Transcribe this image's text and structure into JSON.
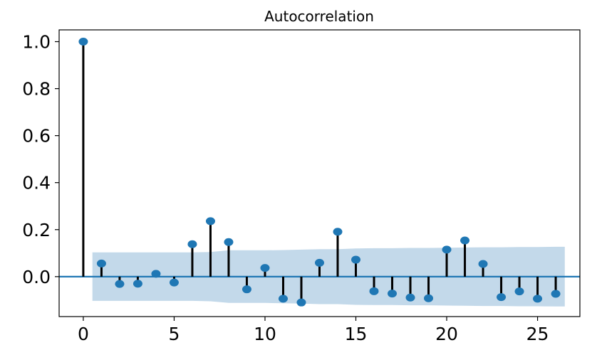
{
  "chart_data": {
    "type": "stem",
    "title": "Autocorrelation",
    "xlabel": "",
    "ylabel": "",
    "xlim": [
      -1.33,
      27.33
    ],
    "ylim": [
      -0.17,
      1.05
    ],
    "x_ticks": [
      0,
      5,
      10,
      15,
      20,
      25
    ],
    "x_tick_labels": [
      "0",
      "5",
      "10",
      "15",
      "20",
      "25"
    ],
    "y_ticks": [
      0.0,
      0.2,
      0.4,
      0.6,
      0.8,
      1.0
    ],
    "y_tick_labels": [
      "0.0",
      "0.2",
      "0.4",
      "0.6",
      "0.8",
      "1.0"
    ],
    "lags": [
      0,
      1,
      2,
      3,
      4,
      5,
      6,
      7,
      8,
      9,
      10,
      11,
      12,
      13,
      14,
      15,
      16,
      17,
      18,
      19,
      20,
      21,
      22,
      23,
      24,
      25,
      26
    ],
    "values": [
      1.0,
      0.056,
      -0.031,
      -0.03,
      0.012,
      -0.025,
      0.138,
      0.236,
      0.147,
      -0.054,
      0.037,
      -0.094,
      -0.11,
      0.059,
      0.191,
      0.072,
      -0.062,
      -0.072,
      -0.089,
      -0.092,
      0.115,
      0.154,
      0.054,
      -0.087,
      -0.063,
      -0.094,
      -0.073
    ],
    "confidence_band": {
      "x": [
        0.5,
        1,
        2,
        3,
        4,
        5,
        6,
        7,
        8,
        9,
        10,
        11,
        12,
        13,
        14,
        15,
        16,
        17,
        18,
        19,
        20,
        21,
        22,
        23,
        24,
        25,
        26,
        26.5
      ],
      "upper": [
        0.103,
        0.103,
        0.103,
        0.103,
        0.103,
        0.103,
        0.103,
        0.105,
        0.112,
        0.112,
        0.112,
        0.113,
        0.115,
        0.117,
        0.117,
        0.12,
        0.121,
        0.121,
        0.122,
        0.122,
        0.123,
        0.124,
        0.125,
        0.125,
        0.126,
        0.126,
        0.127,
        0.127
      ],
      "lower": [
        -0.103,
        -0.103,
        -0.103,
        -0.103,
        -0.103,
        -0.103,
        -0.103,
        -0.105,
        -0.112,
        -0.112,
        -0.112,
        -0.113,
        -0.115,
        -0.117,
        -0.117,
        -0.12,
        -0.121,
        -0.121,
        -0.122,
        -0.122,
        -0.123,
        -0.124,
        -0.125,
        -0.125,
        -0.126,
        -0.126,
        -0.127,
        -0.127
      ]
    },
    "colors": {
      "marker": "#1f77b4",
      "stem": "#000000",
      "zero_line": "#1f77b4",
      "band": "#c3d9ea"
    },
    "grid": false,
    "legend": "none"
  }
}
